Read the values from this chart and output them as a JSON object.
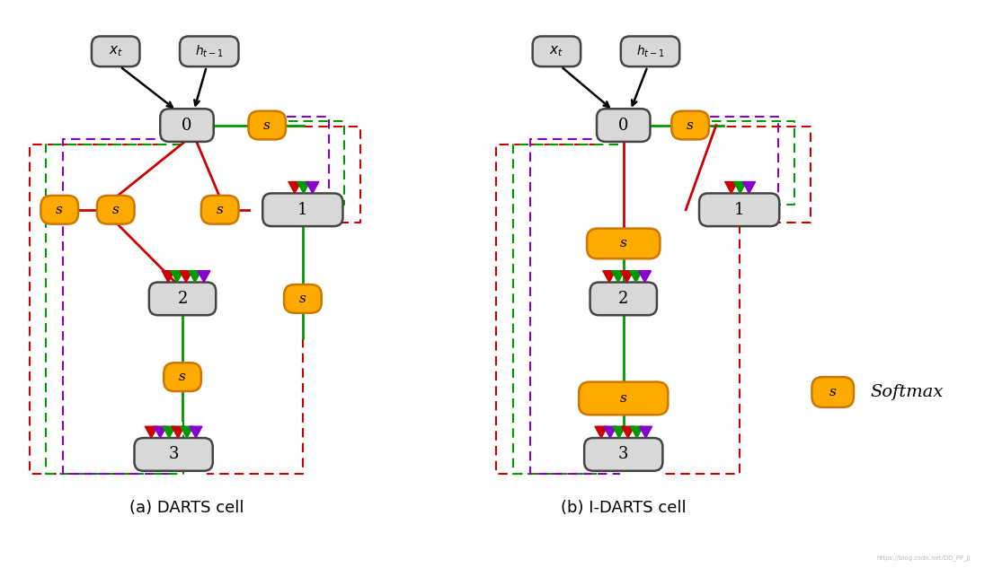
{
  "bg_color": "#ffffff",
  "title_a": "(a) DARTS cell",
  "title_b": "(b) I-DARTS cell",
  "legend_label": "Softmax",
  "colors": {
    "red": "#cc0000",
    "green": "#009900",
    "purple": "#8800cc",
    "box_fill": "#d8d8d8",
    "box_border": "#444444",
    "softmax_fill": "#ffaa00",
    "softmax_border": "#cc7700",
    "black": "#000000"
  },
  "caption_fontsize": 13
}
